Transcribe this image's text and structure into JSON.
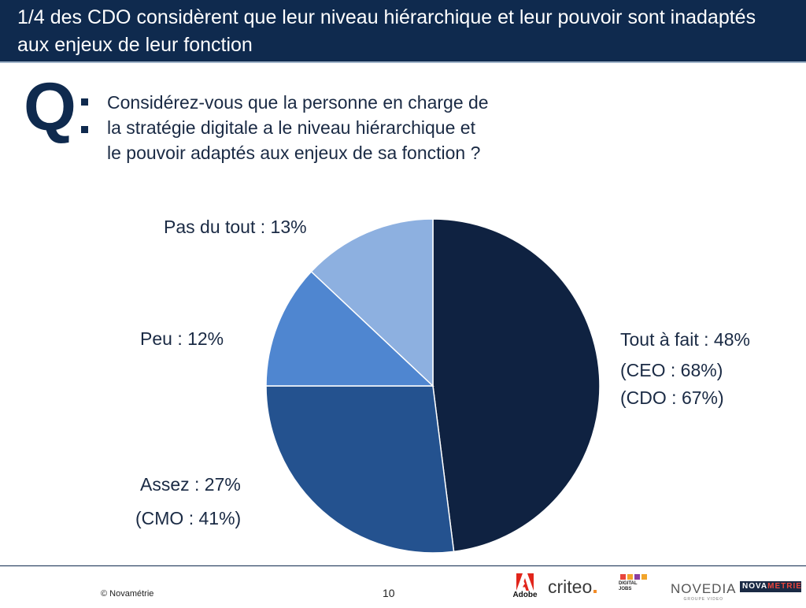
{
  "header": {
    "title": "1/4 des CDO considèrent que leur niveau hiérarchique et leur pouvoir sont inadaptés aux enjeux de leur fonction"
  },
  "question": {
    "letter": "Q",
    "lines": [
      "Considérez-vous que la personne en charge de",
      "la stratégie digitale a le niveau hiérarchique et",
      "le pouvoir adaptés aux enjeux de sa fonction ?"
    ]
  },
  "chart_data": {
    "type": "pie",
    "start": "top",
    "direction": "clockwise",
    "slices": [
      {
        "label": "Tout à fait : 48%",
        "value": 48,
        "color": "#0f2241",
        "notes": [
          "(CEO : 68%)",
          "(CDO : 67%)"
        ]
      },
      {
        "label": "Assez : 27%",
        "value": 27,
        "color": "#24528f",
        "notes": [
          "(CMO : 41%)"
        ]
      },
      {
        "label": "Peu : 12%",
        "value": 12,
        "color": "#4f86d0",
        "notes": []
      },
      {
        "label": "Pas du tout : 13%",
        "value": 13,
        "color": "#8db0e0",
        "notes": []
      }
    ]
  },
  "footer": {
    "copyright": "© Novamétrie",
    "page_number": "10",
    "logos": {
      "adobe": "Adobe",
      "criteo": "criteo",
      "digital_jobs": "DIGITAL JOBS",
      "novedia": "NOVEDIA",
      "novedia_sub": "GROUPE VIDEO",
      "novametrie_a": "NOVA",
      "novametrie_b": "METRIE"
    }
  }
}
